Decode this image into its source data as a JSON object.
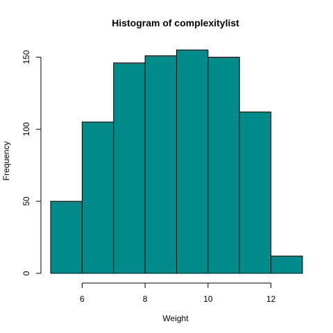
{
  "chart_data": {
    "type": "bar",
    "title": "Histogram of complexitylist",
    "xlabel": "Weight",
    "ylabel": "Frequency",
    "bin_edges": [
      5,
      6,
      7,
      8,
      9,
      10,
      11,
      12,
      13
    ],
    "values": [
      50,
      105,
      146,
      151,
      155,
      150,
      112,
      12
    ],
    "xlim": [
      5,
      13
    ],
    "ylim": [
      0,
      155
    ],
    "x_ticks": [
      6,
      8,
      10,
      12
    ],
    "y_ticks": [
      0,
      50,
      100,
      150
    ],
    "grid": false,
    "bar_color": "#008B8B",
    "bar_border_color": "#000000"
  }
}
